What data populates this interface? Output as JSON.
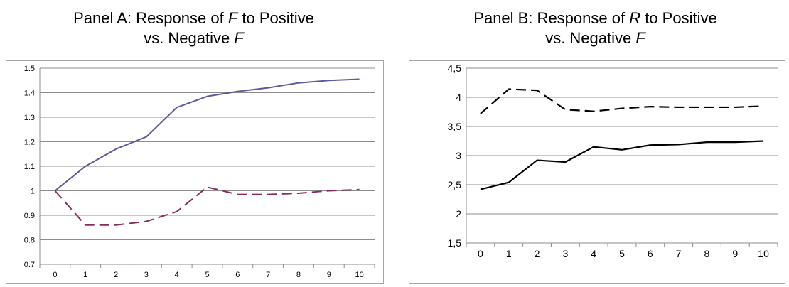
{
  "panel_a": {
    "title_line1_pre": "Panel A: Response of ",
    "title_var1": "F",
    "title_line1_post": " to Positive",
    "title_line2_pre": "vs. Negative ",
    "title_var2": "F"
  },
  "panel_b": {
    "title_line1_pre": "Panel B: Response of ",
    "title_var1": "R",
    "title_line1_post": " to Positive",
    "title_line2_pre": "vs. Negative ",
    "title_var2": "F"
  },
  "chart_data": [
    {
      "type": "line",
      "x": [
        0,
        1,
        2,
        3,
        4,
        5,
        6,
        7,
        8,
        9,
        10
      ],
      "ylim": [
        0.7,
        1.5
      ],
      "yticks": [
        "0.7",
        "0.8",
        "0.9",
        "1",
        "1.1",
        "1.2",
        "1.3",
        "1.4",
        "1.5"
      ],
      "ytick_values": [
        0.7,
        0.8,
        0.9,
        1.0,
        1.1,
        1.2,
        1.3,
        1.4,
        1.5
      ],
      "grid": true,
      "series": [
        {
          "style": "solid",
          "color": "#5b5b9a",
          "values": [
            1.0,
            1.1,
            1.17,
            1.22,
            1.34,
            1.385,
            1.405,
            1.42,
            1.44,
            1.45,
            1.455
          ]
        },
        {
          "style": "dashed",
          "color": "#8b2c5a",
          "values": [
            1.0,
            0.86,
            0.86,
            0.875,
            0.915,
            1.015,
            0.985,
            0.985,
            0.99,
            1.0,
            1.005
          ]
        }
      ]
    },
    {
      "type": "line",
      "x": [
        0,
        1,
        2,
        3,
        4,
        5,
        6,
        7,
        8,
        9,
        10
      ],
      "ylim": [
        1.5,
        4.5
      ],
      "yticks": [
        "1,5",
        "2",
        "2,5",
        "3",
        "3,5",
        "4",
        "4,5"
      ],
      "ytick_values": [
        1.5,
        2.0,
        2.5,
        3.0,
        3.5,
        4.0,
        4.5
      ],
      "grid": true,
      "series": [
        {
          "style": "solid",
          "color": "#000000",
          "values": [
            2.42,
            2.54,
            2.92,
            2.89,
            3.15,
            3.1,
            3.18,
            3.19,
            3.23,
            3.23,
            3.25
          ]
        },
        {
          "style": "dashed",
          "color": "#000000",
          "values": [
            3.72,
            4.14,
            4.12,
            3.79,
            3.76,
            3.81,
            3.84,
            3.83,
            3.83,
            3.83,
            3.85
          ]
        }
      ]
    }
  ]
}
